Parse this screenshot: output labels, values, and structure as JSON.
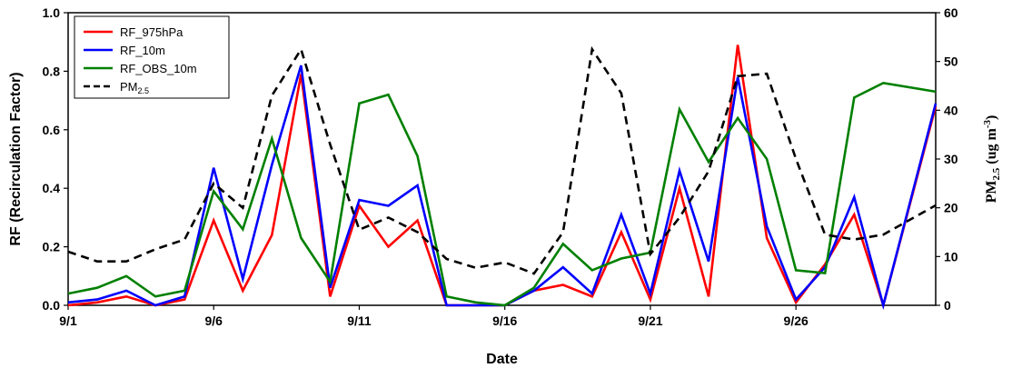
{
  "chart_data": {
    "type": "line",
    "title": "",
    "xlabel": "Date",
    "ylabel_left": "RF (Recirculation Factor)",
    "ylabel_right": {
      "main": "PM",
      "sub": "2.5",
      "unit_open": " (ug m",
      "unit_sup": "-3",
      "unit_close": ")"
    },
    "x_ticks": [
      "9/1",
      "9/6",
      "9/11",
      "9/16",
      "9/21",
      "9/26"
    ],
    "x_tick_days": [
      1,
      6,
      11,
      16,
      21,
      26
    ],
    "xlim": [
      1,
      30.8
    ],
    "ylim_left": [
      0,
      1.0
    ],
    "y_ticks_left": [
      "0.0",
      "0.2",
      "0.4",
      "0.6",
      "0.8",
      "1.0"
    ],
    "ylim_right": [
      0,
      60
    ],
    "y_ticks_right": [
      "0",
      "10",
      "20",
      "30",
      "40",
      "50",
      "60"
    ],
    "grid": false,
    "legend_position": "top-left",
    "series": [
      {
        "name": "RF_975hPa",
        "axis": "left",
        "color": "#ff0000",
        "dash": "solid",
        "x": [
          1,
          2,
          3,
          4,
          5,
          6,
          7,
          8,
          9,
          10,
          11,
          12,
          13,
          14,
          15,
          16,
          17,
          18,
          19,
          20,
          21,
          22,
          23,
          24,
          25,
          26,
          27,
          28,
          29,
          30.8
        ],
        "values": [
          0.0,
          0.01,
          0.03,
          0.0,
          0.02,
          0.29,
          0.05,
          0.24,
          0.79,
          0.03,
          0.34,
          0.2,
          0.29,
          0.0,
          0.0,
          0.0,
          0.05,
          0.07,
          0.03,
          0.25,
          0.02,
          0.4,
          0.03,
          0.89,
          0.23,
          0.01,
          0.14,
          0.31,
          0.0,
          0.68
        ]
      },
      {
        "name": "RF_10m",
        "axis": "left",
        "color": "#0000ff",
        "dash": "solid",
        "x": [
          1,
          2,
          3,
          4,
          5,
          6,
          7,
          8,
          9,
          10,
          11,
          12,
          13,
          14,
          15,
          16,
          17,
          18,
          19,
          20,
          21,
          22,
          23,
          24,
          25,
          26,
          27,
          28,
          29,
          30.8
        ],
        "values": [
          0.01,
          0.02,
          0.05,
          0.0,
          0.03,
          0.47,
          0.09,
          0.48,
          0.82,
          0.06,
          0.36,
          0.34,
          0.41,
          0.0,
          0.0,
          0.0,
          0.05,
          0.13,
          0.04,
          0.31,
          0.04,
          0.46,
          0.15,
          0.78,
          0.27,
          0.02,
          0.13,
          0.37,
          0.0,
          0.69
        ]
      },
      {
        "name": "RF_OBS_10m",
        "axis": "left",
        "color": "#008000",
        "dash": "solid",
        "x": [
          1,
          2,
          3,
          4,
          5,
          6,
          7,
          8,
          9,
          10,
          11,
          12,
          13,
          14,
          15,
          16,
          17,
          18,
          19,
          20,
          21,
          22,
          23,
          24,
          25,
          26,
          27,
          28,
          29,
          30.8
        ],
        "values": [
          0.04,
          0.06,
          0.1,
          0.03,
          0.05,
          0.39,
          0.26,
          0.57,
          0.23,
          0.08,
          0.69,
          0.72,
          0.51,
          0.03,
          0.01,
          0.0,
          0.06,
          0.21,
          0.12,
          0.16,
          0.18,
          0.67,
          0.49,
          0.64,
          0.5,
          0.12,
          0.11,
          0.71,
          0.76,
          0.73
        ]
      },
      {
        "name": "PM",
        "name_sub": "2.5",
        "axis": "right",
        "color": "#000000",
        "dash": "dashed",
        "x": [
          1,
          2,
          3,
          4,
          5,
          6,
          7,
          8,
          9,
          10,
          11,
          12,
          13,
          14,
          15,
          16,
          17,
          18,
          19,
          20,
          21,
          22,
          23,
          24,
          25,
          26,
          27,
          28,
          29,
          30.8
        ],
        "values": [
          11,
          9,
          9,
          11.5,
          13.5,
          25,
          20,
          43,
          52.5,
          33,
          15.5,
          18,
          15,
          9.5,
          7.7,
          8.8,
          6.5,
          15,
          52.5,
          43.5,
          10.5,
          18,
          27.5,
          47,
          47.5,
          30,
          14.5,
          13.5,
          14.5,
          20.5
        ]
      }
    ]
  }
}
